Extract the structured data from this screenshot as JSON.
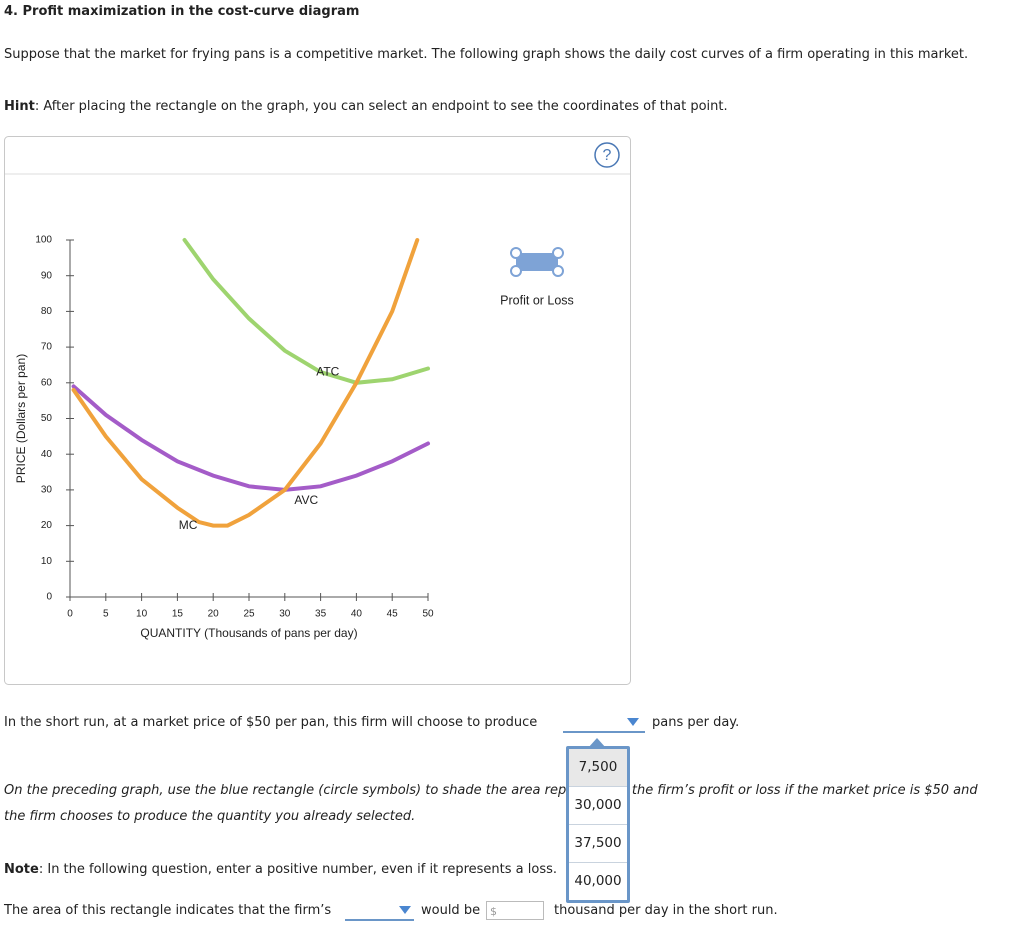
{
  "header": {
    "title": "4. Profit maximization in the cost-curve diagram",
    "intro": "Suppose that the market for frying pans is a competitive market. The following graph shows the daily cost curves of a firm operating in this market.",
    "hint_label": "Hint",
    "hint_text": ": After placing the rectangle on the graph, you can select an endpoint to see the coordinates of that point."
  },
  "widget": {
    "help": "?",
    "tool_label": "Profit or Loss"
  },
  "chart_data": {
    "type": "line",
    "xlabel": "QUANTITY (Thousands of pans per day)",
    "ylabel": "PRICE (Dollars per pan)",
    "xlim": [
      0,
      50
    ],
    "ylim": [
      0,
      100
    ],
    "xticks": [
      0,
      5,
      10,
      15,
      20,
      25,
      30,
      35,
      40,
      45,
      50
    ],
    "yticks": [
      0,
      10,
      20,
      30,
      40,
      50,
      60,
      70,
      80,
      90,
      100
    ],
    "series": [
      {
        "name": "ATC",
        "color": "#9ed46f",
        "label_at": [
          36,
          63
        ],
        "x": [
          16,
          20,
          25,
          30,
          35,
          40,
          45,
          50
        ],
        "values": [
          100,
          89,
          78,
          69,
          63,
          60,
          61,
          64
        ]
      },
      {
        "name": "AVC",
        "color": "#a45cc8",
        "label_at": [
          33,
          27
        ],
        "x": [
          0.5,
          5,
          10,
          15,
          20,
          25,
          30,
          35,
          40,
          45,
          50
        ],
        "values": [
          59,
          51,
          44,
          38,
          34,
          31,
          30,
          31,
          34,
          38,
          43
        ]
      },
      {
        "name": "MC",
        "color": "#f0a23c",
        "label_at": [
          16.5,
          20
        ],
        "x": [
          0.5,
          5,
          10,
          15,
          18,
          20,
          22,
          25,
          30,
          35,
          40,
          45,
          48.5
        ],
        "values": [
          58,
          45,
          33,
          25,
          21,
          20,
          20,
          23,
          30,
          43,
          60,
          80,
          100
        ]
      }
    ]
  },
  "questions": {
    "q1_before": "In the short run, at a market price of $50 per pan, this firm will choose to produce",
    "q1_after": "pans per day.",
    "q1_options": [
      "7,500",
      "30,000",
      "37,500",
      "40,000"
    ],
    "instruction_lines": [
      "On the preceding graph, use the blue rectangle (circle symbols) to shade the area representing the firm’s profit or loss if the market price is $50 and",
      "the firm chooses to produce the quantity you already selected."
    ],
    "note_label": "Note",
    "note_text": ": In the following question, enter a positive number, even if it represents a loss.",
    "q2_before": "The area of this rectangle indicates that the firm’s",
    "q2_middle": "would be",
    "q2_currency": "$",
    "q2_after": "thousand per day in the short run."
  }
}
